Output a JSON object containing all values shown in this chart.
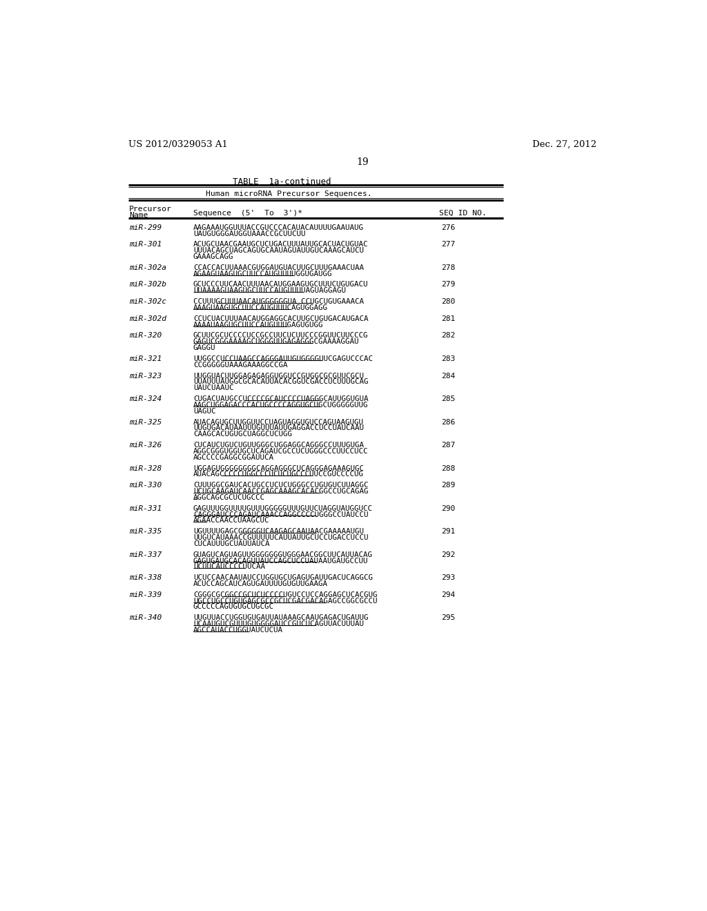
{
  "header_left": "US 2012/0329053 A1",
  "header_right": "Dec. 27, 2012",
  "page_number": "19",
  "table_title": "TABLE  1a-continued",
  "table_subtitle": "Human microRNA Precursor Sequences.",
  "entries": [
    {
      "name": "miR-299",
      "lines": [
        "AAGAAAUGGUUUACCGUCCCACAUACAUUUUGAAUAUG",
        "UAUGUGGGAUGGUAAACCGCUUCUU"
      ],
      "id": "276",
      "underlines": []
    },
    {
      "name": "miR-301",
      "lines": [
        "ACUGCUAACGAAUGCUCUGACUUUAUUGCACUACUGUAC",
        "UUUACAGCUAGCAGUGCAAUAGUAUUGUCAAAGCAUCU",
        "GAAAGCAGG"
      ],
      "id": "277",
      "underlines": []
    },
    {
      "name": "miR-302a",
      "lines": [
        "CCACCACUUAAACGUGGAUGUACUUGCUUUGAAACUAA",
        "AGAAGUAAGUGCUUCCAUGUUUUGGUGAUGG"
      ],
      "id": "278",
      "underlines": [
        [
          1,
          0,
          31
        ]
      ]
    },
    {
      "name": "miR-302b",
      "lines": [
        "GCUCCCUUCAACUUUAACAUGGAAGUGCUUUCUGUGACU",
        "UUAAAAGUAAGUGCUUCCAUGUUUUAGUAGGAGU"
      ],
      "id": "279",
      "underlines": [
        [
          1,
          0,
          34
        ]
      ]
    },
    {
      "name": "miR-302c",
      "lines": [
        "CCUUUGCUUUAACAUGGGGGGUA CCUGCUGUGAAACA",
        "AAAGUAAGUGCUUCCAUGUUUCAGUGGAGG"
      ],
      "id": "280",
      "underlines": [
        [
          0,
          7,
          37
        ],
        [
          1,
          0,
          30
        ]
      ]
    },
    {
      "name": "miR-302d",
      "lines": [
        "CCUCUACUUUAACAUGGAGGCACUUGCUGUGACAUGACA",
        "AAAAUAAGUGCUUCCAUGUUUGAGUGUGG"
      ],
      "id": "281",
      "underlines": [
        [
          1,
          0,
          29
        ]
      ]
    },
    {
      "name": "miR-320",
      "lines": [
        "GCUUCGCUCCCCUCCGCCUUCUCUUCCCGGUUCUUCCCG",
        "GAGUCGGGAAAAGCUGGGUUGAGAGGGCGAAAAGGAU",
        "GAGGU"
      ],
      "id": "282",
      "underlines": [
        [
          1,
          0,
          37
        ]
      ]
    },
    {
      "name": "miR-321",
      "lines": [
        "UUGGCCUCCUAAGCCAGGGAUUGUGGGGUUCGAGUCCCAC",
        "CCGGGGGUAAAGAAAGGCCGA"
      ],
      "id": "283",
      "underlines": [
        [
          0,
          9,
          40
        ]
      ]
    },
    {
      "name": "miR-323",
      "lines": [
        "UUGGUACUUGGAGAGAGGUGGUCCGUGGCGCGUUCGCU",
        "UUAUUUAUGGCGCACAUUACACGGUCGACCUCUUUGCAG",
        "UAUCUAAUC"
      ],
      "id": "284",
      "underlines": []
    },
    {
      "name": "miR-324",
      "lines": [
        "CUGACUAUGCCUCCCCGCAUCCCCUAGGGCAUUGGUGUA",
        "AAGCUGGAGACCCACUGCCCCAGGUGCUGCUGGGGGUUG",
        "UAGUC"
      ],
      "id": "285",
      "underlines": [
        [
          0,
          16,
          39
        ],
        [
          1,
          0,
          39
        ]
      ]
    },
    {
      "name": "miR-325",
      "lines": [
        "AUACAGUGCUUGGUUCCUAGUAGGUGUCCAGUAAGUGU",
        "UUGUGACAUAAUUUGUUUAUUGAGGACCUCCUAUCAAU",
        "CAAGCACUGUGCUAGGCUCUGG"
      ],
      "id": "286",
      "underlines": []
    },
    {
      "name": "miR-326",
      "lines": [
        "CUCAUCUGUCUGUUGGGCUGGAGGCAGGGCCUUUGUGA",
        "AGGCGGGUGGUGCUCAGAUCGCCUCUGGGCCCUUCCUCC",
        "AGCCCCGAGGCGGAUUCA"
      ],
      "id": "287",
      "underlines": []
    },
    {
      "name": "miR-328",
      "lines": [
        "UGGAGUGGGGGGGGCAGGAGGGCUCAGGGAGAAAGUGC",
        "AUACAGCCCCCUGGCCCUCUCUGCCCUUCCGUCCCCUG"
      ],
      "id": "288",
      "underlines": [
        [
          1,
          9,
          37
        ]
      ]
    },
    {
      "name": "miR-330",
      "lines": [
        "CUUUGGCGAUCACUGCCUCUCUGGGCCUGUGUCUUAGGC",
        "UCUGCAAGAUCAACCGAGCAAAGCACACGGCCUGCAGAG",
        "AGGCAGCGCUCUGCCC"
      ],
      "id": "289",
      "underlines": [
        [
          1,
          0,
          39
        ],
        [
          2,
          0,
          1
        ]
      ]
    },
    {
      "name": "miR-331",
      "lines": [
        "GAGUUUGGUUUUGUUUGGGGGUUUGUUCUAGGUAUGGUCC",
        "CAGGGAUCCCAGAUCAAACCAGGCCCCUGGGCCUAUCCU",
        "AGAACCAACCUAAGCUC"
      ],
      "id": "290",
      "underlines": [
        [
          1,
          0,
          38
        ],
        [
          2,
          0,
          4
        ]
      ]
    },
    {
      "name": "miR-335",
      "lines": [
        "UGUUUUGAGCGGGGGUCAAGAGCAAUAACGAAAAAUGU",
        "UUGUCAUAAACCGUUUUUCAUUAUUGCUCCUGACCUCCU",
        "CUCAUUUGCUAUUAUCA"
      ],
      "id": "291",
      "underlines": [
        [
          0,
          15,
          38
        ]
      ]
    },
    {
      "name": "miR-337",
      "lines": [
        "GUAGUCAGUAGUUGGGGGGGUGGGAACGGCUUCAUUACAG",
        "GAGUGAUGCACAGUUAUCCAGCUCCUAUAAUGAUGCCUU",
        "UCUUCAUCCCCUUCAA"
      ],
      "id": "292",
      "underlines": [
        [
          1,
          0,
          38
        ],
        [
          2,
          0,
          16
        ]
      ]
    },
    {
      "name": "miR-338",
      "lines": [
        "UCUCCAACAAUAUCCUGGUGCUGAGUGAUUGACUCAGGCG",
        "ACUCCAGCAUCAGUGAUUUUGUGUUGAAGA"
      ],
      "id": "293",
      "underlines": []
    },
    {
      "name": "miR-339",
      "lines": [
        "CGGGCGCGGCCGCUCUCCCCUGUCCUCCAGGAGCUCACGUG",
        "UGCCUGCCUGUGAGCGCCGCUCGACGACAGAGCCGGCGCCU",
        "GCCCCCAGUGUGCUGCGC"
      ],
      "id": "294",
      "underlines": [
        [
          0,
          9,
          28
        ],
        [
          1,
          0,
          41
        ]
      ]
    },
    {
      "name": "miR-340",
      "lines": [
        "UUGUUACCUGGUGUGAUUAUAAAGCAAUGAGACUGAUUG",
        "UCAAUGUCGUUUGUGGGGAUCCGUCUCAGUUACUUUAU",
        "AGCCAUACCUGGUAUCUCUA"
      ],
      "id": "295",
      "underlines": [
        [
          1,
          0,
          38
        ],
        [
          2,
          0,
          17
        ]
      ]
    }
  ]
}
